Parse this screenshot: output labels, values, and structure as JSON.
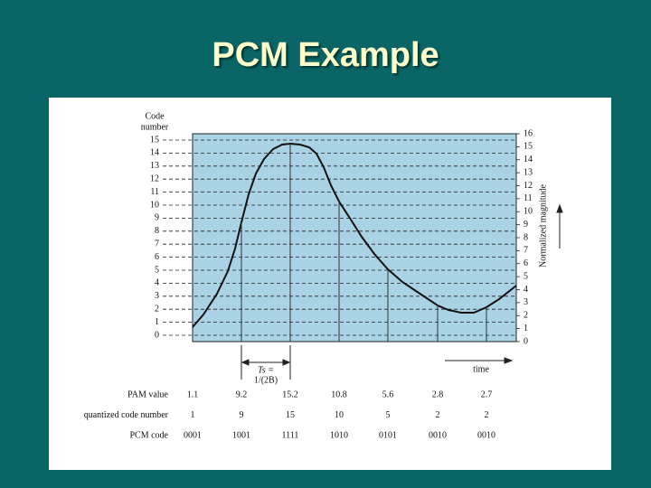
{
  "title": "PCM Example",
  "figure": {
    "left_axis_label": [
      "Code",
      "number"
    ],
    "code_numbers": [
      "0",
      "1",
      "2",
      "3",
      "4",
      "5",
      "6",
      "7",
      "8",
      "9",
      "10",
      "11",
      "12",
      "13",
      "14",
      "15"
    ],
    "right_axis": [
      "0",
      "1",
      "2",
      "3",
      "4",
      "5",
      "6",
      "7",
      "8",
      "9",
      "10",
      "11",
      "12",
      "13",
      "14",
      "15",
      "16"
    ],
    "right_axis_label": "Normalized magnitude",
    "period_label": [
      "Ts =",
      "1/(2B)"
    ],
    "time_label": "time"
  },
  "table": {
    "rows": [
      {
        "label": "PAM value",
        "cells": [
          "1.1",
          "9.2",
          "15.2",
          "10.8",
          "5.6",
          "2.8",
          "2.7"
        ]
      },
      {
        "label": "quantized code number",
        "cells": [
          "1",
          "9",
          "15",
          "10",
          "5",
          "2",
          "2"
        ]
      },
      {
        "label": "PCM code",
        "cells": [
          "0001",
          "1001",
          "1111",
          "1010",
          "0101",
          "0010",
          "0010"
        ]
      }
    ]
  }
}
